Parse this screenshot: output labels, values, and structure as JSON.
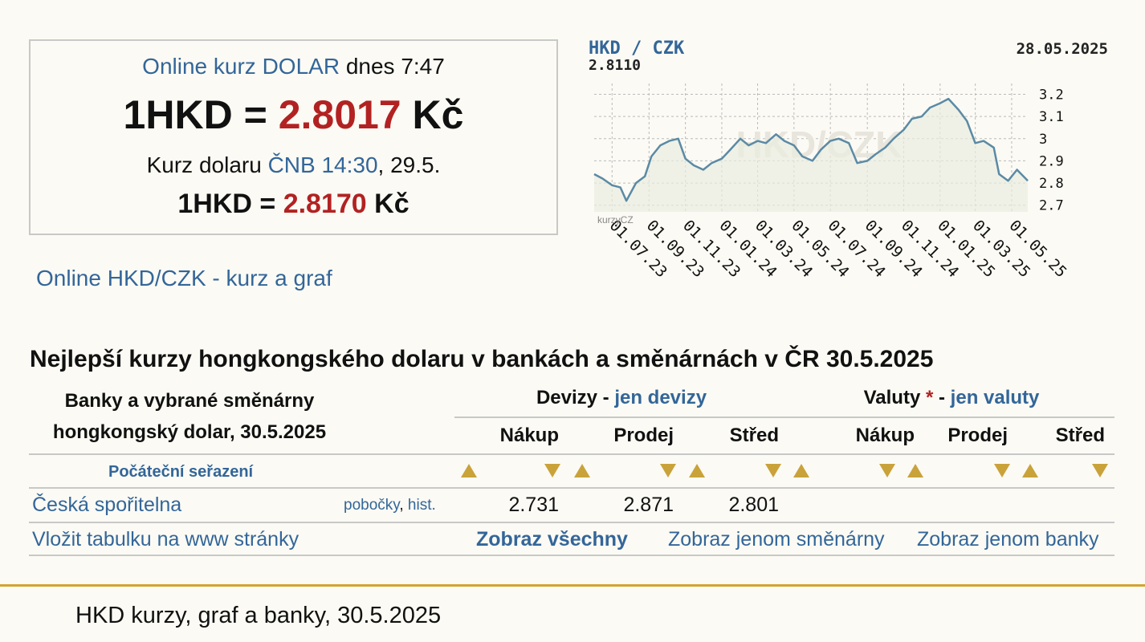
{
  "rate_box": {
    "online_prefix": "Online kurz DOLAR",
    "online_suffix": "dnes 7:47",
    "main_currency": "1HKD =",
    "main_value": "2.8017",
    "main_unit": "Kč",
    "cnb_prefix": "Kurz dolaru",
    "cnb_link": "ČNB 14:30",
    "cnb_date": ", 29.5.",
    "cnb_currency": "1HKD =",
    "cnb_value": "2.8170",
    "cnb_unit": "Kč"
  },
  "online_link": "Online HKD/CZK - kurz a graf",
  "chart_data": {
    "type": "line",
    "pair": "HKD / CZK",
    "last_value": "2.8110",
    "date": "28.05.2025",
    "watermark": "HKD/CZK",
    "brand": "kurzyCZ",
    "ylim": [
      2.67,
      3.22
    ],
    "yticks": [
      "3.2",
      "3.1",
      "3",
      "2.9",
      "2.8",
      "2.7"
    ],
    "xticks": [
      "01.07.23",
      "01.09.23",
      "01.11.23",
      "01.01.24",
      "01.03.24",
      "01.05.24",
      "01.07.24",
      "01.09.24",
      "01.11.24",
      "01.01.25",
      "01.03.25",
      "01.05.25"
    ],
    "x_start": "2023-06-01",
    "x_end": "2025-05-28",
    "series": [
      {
        "values": [
          [
            "2023-06-01",
            2.84
          ],
          [
            "2023-06-15",
            2.82
          ],
          [
            "2023-07-01",
            2.79
          ],
          [
            "2023-07-15",
            2.78
          ],
          [
            "2023-07-25",
            2.72
          ],
          [
            "2023-08-10",
            2.8
          ],
          [
            "2023-08-25",
            2.83
          ],
          [
            "2023-09-05",
            2.92
          ],
          [
            "2023-09-20",
            2.97
          ],
          [
            "2023-10-05",
            2.99
          ],
          [
            "2023-10-20",
            3.0
          ],
          [
            "2023-11-01",
            2.91
          ],
          [
            "2023-11-15",
            2.88
          ],
          [
            "2023-12-01",
            2.86
          ],
          [
            "2023-12-15",
            2.89
          ],
          [
            "2024-01-01",
            2.91
          ],
          [
            "2024-01-15",
            2.95
          ],
          [
            "2024-02-01",
            3.0
          ],
          [
            "2024-02-15",
            2.97
          ],
          [
            "2024-03-01",
            2.99
          ],
          [
            "2024-03-15",
            2.98
          ],
          [
            "2024-04-01",
            3.02
          ],
          [
            "2024-04-15",
            2.99
          ],
          [
            "2024-05-01",
            2.97
          ],
          [
            "2024-05-15",
            2.92
          ],
          [
            "2024-06-01",
            2.9
          ],
          [
            "2024-06-15",
            2.95
          ],
          [
            "2024-07-01",
            2.99
          ],
          [
            "2024-07-15",
            3.0
          ],
          [
            "2024-08-01",
            2.98
          ],
          [
            "2024-08-15",
            2.89
          ],
          [
            "2024-09-01",
            2.9
          ],
          [
            "2024-09-15",
            2.93
          ],
          [
            "2024-10-01",
            2.96
          ],
          [
            "2024-10-15",
            3.0
          ],
          [
            "2024-11-01",
            3.04
          ],
          [
            "2024-11-15",
            3.09
          ],
          [
            "2024-12-01",
            3.1
          ],
          [
            "2024-12-15",
            3.14
          ],
          [
            "2025-01-01",
            3.16
          ],
          [
            "2025-01-15",
            3.18
          ],
          [
            "2025-02-01",
            3.13
          ],
          [
            "2025-02-15",
            3.08
          ],
          [
            "2025-03-01",
            2.98
          ],
          [
            "2025-03-15",
            2.99
          ],
          [
            "2025-04-01",
            2.96
          ],
          [
            "2025-04-10",
            2.84
          ],
          [
            "2025-04-25",
            2.81
          ],
          [
            "2025-05-10",
            2.86
          ],
          [
            "2025-05-28",
            2.81
          ]
        ]
      }
    ]
  },
  "section_title": "Nejlepší kurzy hongkongského dolaru v bankách a směnárnách v ČR 30.5.2025",
  "table": {
    "banks_header_line1": "Banky a vybrané směnárny",
    "banks_header_line2": "hongkongský dolar, 30.5.2025",
    "devizy_label": "Devizy",
    "devizy_link": "jen devizy",
    "valuty_label": "Valuty",
    "valuty_star": "*",
    "valuty_link": "jen valuty",
    "dash": "-",
    "col_buy": "Nákup",
    "col_sell": "Prodej",
    "col_mid": "Střed",
    "sort_label": "Počáteční seřazení",
    "rows": [
      {
        "bank": "Česká spořitelna",
        "branches": "pobočky",
        "hist": "hist.",
        "dev_buy": "2.731",
        "dev_sell": "2.871",
        "dev_mid": "2.801"
      }
    ],
    "embed_link": "Vložit tabulku na www stránky",
    "show_all": "Zobraz všechny",
    "show_exchanges": "Zobraz jenom směnárny",
    "show_banks": "Zobraz jenom banky"
  },
  "footer_text": "HKD kurzy, graf a banky, 30.5.2025",
  "colors": {
    "link": "#336699",
    "rate_red": "#b22222",
    "gold": "#d4a32e",
    "line": "#5b8aa5"
  }
}
